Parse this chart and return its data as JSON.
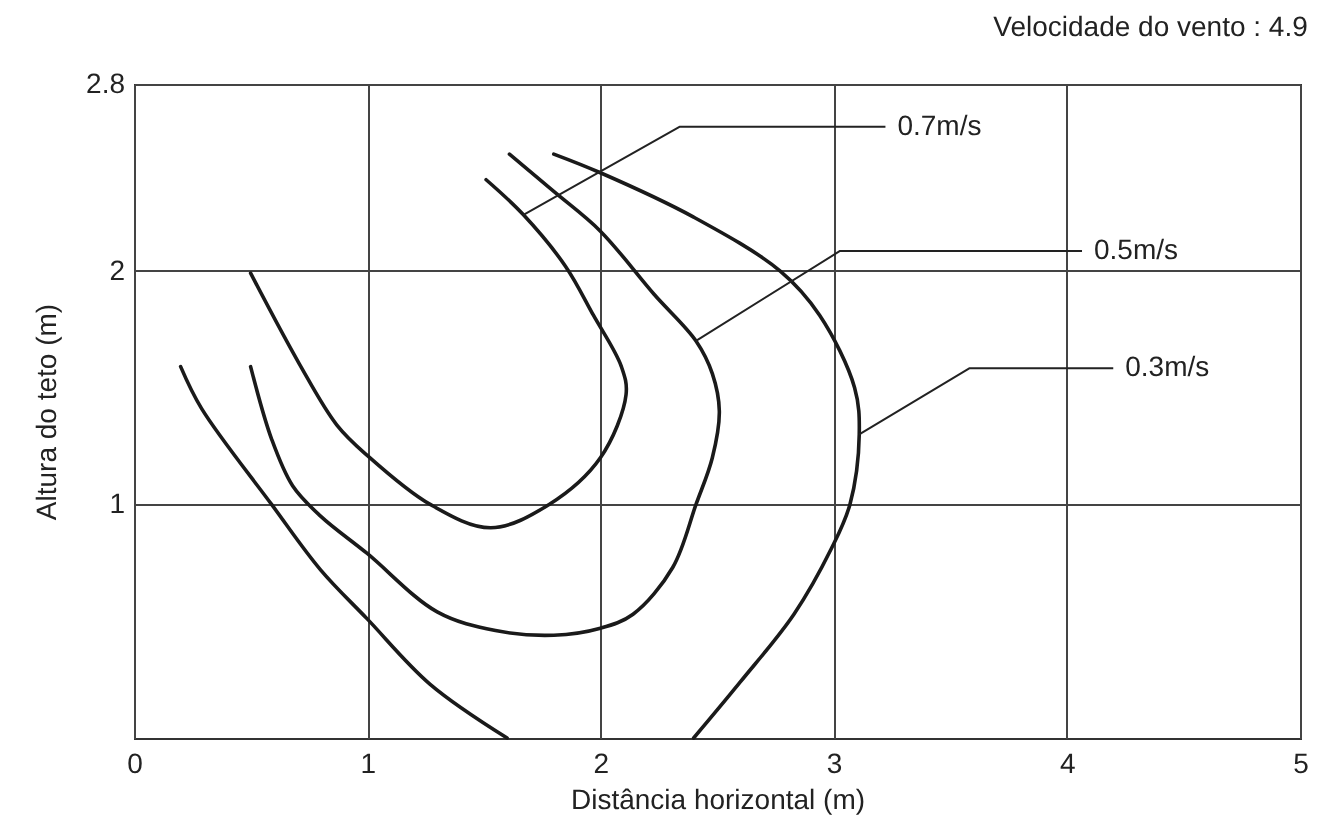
{
  "chart_data": {
    "type": "line",
    "title": "Velocidade do vento : 4.9",
    "xlabel": "Distância horizontal (m)",
    "ylabel": "Altura do teto (m)",
    "xlim": [
      0,
      5
    ],
    "ylim": [
      0,
      2.8
    ],
    "xticks": [
      0,
      1,
      2,
      3,
      4,
      5
    ],
    "yticks": [
      1,
      2,
      2.8
    ],
    "grid": true,
    "line_style": "solid",
    "series": [
      {
        "color": "#1a1a1a",
        "x": [
          0.5,
          0.71,
          0.87,
          1.0,
          1.27,
          1.53,
          1.78,
          2.0,
          2.11,
          2.09,
          1.97,
          1.85,
          1.67,
          1.51
        ],
        "values": [
          1.99,
          1.6,
          1.34,
          1.21,
          1.0,
          0.9,
          1.0,
          1.2,
          1.47,
          1.59,
          1.81,
          2.02,
          2.24,
          2.39
        ]
      },
      {
        "color": "#1a1a1a",
        "x": [
          0.5,
          0.59,
          0.68,
          0.8,
          1.0,
          1.3,
          1.55,
          1.8,
          2.0,
          2.14,
          2.31,
          2.41,
          2.48,
          2.51,
          2.48,
          2.41,
          2.23,
          2.0,
          1.8,
          1.61
        ],
        "values": [
          1.59,
          1.28,
          1.08,
          0.95,
          0.79,
          0.54,
          0.46,
          0.44,
          0.47,
          0.53,
          0.73,
          1.0,
          1.2,
          1.4,
          1.56,
          1.7,
          1.9,
          2.17,
          2.34,
          2.5
        ]
      },
      {
        "color": "#1a1a1a",
        "x": [
          0.2,
          0.29,
          0.59,
          0.8,
          1.0,
          1.27,
          1.6,
          null,
          1.8,
          2.0,
          2.4,
          2.77,
          2.94,
          3.09,
          3.11,
          3.07,
          2.99,
          2.83,
          2.6,
          2.4
        ],
        "values": [
          1.59,
          1.41,
          1.0,
          0.72,
          0.51,
          0.23,
          0.0,
          null,
          2.5,
          2.42,
          2.23,
          2.0,
          1.81,
          1.5,
          1.3,
          1.0,
          0.81,
          0.53,
          0.24,
          0.0
        ]
      }
    ],
    "annotations": [
      {
        "text": "0.7m/s",
        "x": 1.67,
        "y": 2.24
      },
      {
        "text": "0.5m/s",
        "x": 2.41,
        "y": 1.7
      },
      {
        "text": "0.3m/s",
        "x": 3.11,
        "y": 1.3
      }
    ]
  }
}
